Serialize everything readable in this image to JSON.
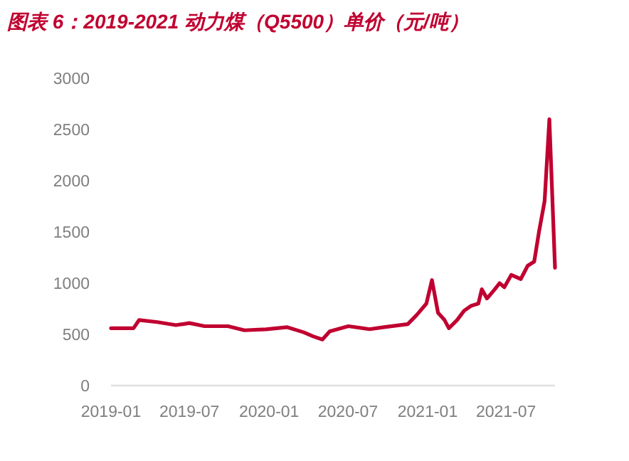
{
  "chart_data": {
    "type": "line",
    "title": "图表 6：2019-2021 动力煤（Q5500）单价（元/吨）",
    "x": [
      "2019-01-01",
      "2019-02-22",
      "2019-03-07",
      "2019-04-18",
      "2019-05-31",
      "2019-07-01",
      "2019-08-05",
      "2019-09-28",
      "2019-11-05",
      "2019-12-25",
      "2020-02-12",
      "2020-03-21",
      "2020-04-12",
      "2020-05-03",
      "2020-05-20",
      "2020-07-02",
      "2020-08-20",
      "2020-09-22",
      "2020-11-16",
      "2020-12-07",
      "2020-12-29",
      "2021-01-11",
      "2021-01-25",
      "2021-02-09",
      "2021-02-19",
      "2021-03-10",
      "2021-03-26",
      "2021-04-12",
      "2021-04-28",
      "2021-05-06",
      "2021-05-18",
      "2021-06-05",
      "2021-06-16",
      "2021-06-27",
      "2021-07-13",
      "2021-08-04",
      "2021-08-20",
      "2021-09-04",
      "2021-09-15",
      "2021-09-28",
      "2021-10-09",
      "2021-10-22"
    ],
    "series": [
      {
        "color": "#c00030",
        "values": [
          560,
          560,
          640,
          620,
          590,
          610,
          580,
          580,
          540,
          550,
          570,
          520,
          480,
          450,
          530,
          580,
          550,
          570,
          600,
          690,
          800,
          1030,
          710,
          640,
          560,
          640,
          730,
          780,
          800,
          940,
          850,
          940,
          1000,
          960,
          1080,
          1040,
          1170,
          1210,
          1500,
          1800,
          2600,
          1150
        ]
      }
    ],
    "xlim": [
      "2019-01-01",
      "2021-10-22"
    ],
    "xticks": [
      {
        "value": "2019-01",
        "label": "2019-01"
      },
      {
        "value": "2019-07",
        "label": "2019-07"
      },
      {
        "value": "2020-01",
        "label": "2020-01"
      },
      {
        "value": "2020-07",
        "label": "2020-07"
      },
      {
        "value": "2021-01",
        "label": "2021-01"
      },
      {
        "value": "2021-07",
        "label": "2021-07"
      }
    ],
    "ylim": [
      0,
      3000
    ],
    "yticks": [
      0,
      500,
      1000,
      1500,
      2000,
      2500,
      3000
    ],
    "marker": "none",
    "line_style": "solid"
  }
}
